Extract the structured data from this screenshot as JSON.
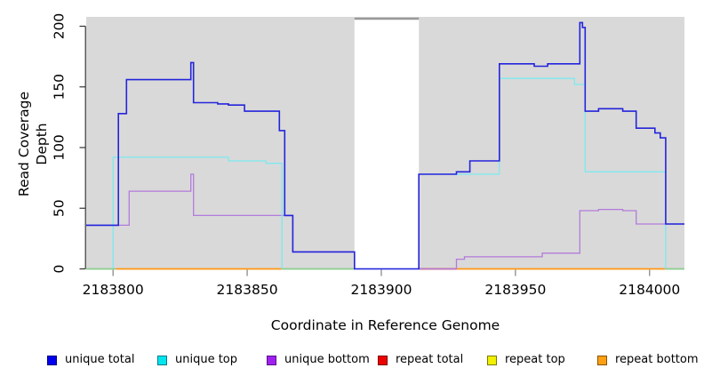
{
  "chart_data": {
    "type": "line",
    "step": true,
    "title": "",
    "xlabel": "Coordinate in Reference Genome",
    "ylabel": "Read Coverage Depth",
    "xlim": [
      2183790,
      2184013
    ],
    "ylim": [
      0,
      208
    ],
    "x_ticks": [
      2183800,
      2183850,
      2183900,
      2183950,
      2184000
    ],
    "y_ticks": [
      0,
      50,
      100,
      150,
      200
    ],
    "panel_background": "#D9D9D9",
    "grid": "off",
    "legend_position": "bottom",
    "masked_region": {
      "from": 2183890,
      "to": 2183914,
      "fill": "#FFFFFF",
      "top_border_color": "#999999"
    },
    "series": [
      {
        "name": "unique total",
        "line_color": "#2424DC",
        "render": "step",
        "step_points": [
          [
            2183790,
            36
          ],
          [
            2183802,
            128
          ],
          [
            2183805,
            156
          ],
          [
            2183829,
            170
          ],
          [
            2183830,
            137
          ],
          [
            2183839,
            136
          ],
          [
            2183843,
            135
          ],
          [
            2183849,
            130
          ],
          [
            2183862,
            114
          ],
          [
            2183864,
            44
          ],
          [
            2183867,
            14
          ],
          [
            2183890,
            0
          ],
          [
            2183914,
            78
          ],
          [
            2183928,
            80
          ],
          [
            2183933,
            89
          ],
          [
            2183944,
            169
          ],
          [
            2183957,
            167
          ],
          [
            2183962,
            169
          ],
          [
            2183974,
            203
          ],
          [
            2183975,
            199
          ],
          [
            2183976,
            130
          ],
          [
            2183981,
            132
          ],
          [
            2183990,
            130
          ],
          [
            2183995,
            116
          ],
          [
            2184002,
            112
          ],
          [
            2184004,
            108
          ],
          [
            2184006,
            37
          ],
          [
            2184013,
            37
          ]
        ]
      },
      {
        "name": "unique top",
        "line_color": "#7DE9F0",
        "render": "step",
        "step_points": [
          [
            2183790,
            0
          ],
          [
            2183800,
            92
          ],
          [
            2183843,
            89
          ],
          [
            2183857,
            87
          ],
          [
            2183863,
            0
          ],
          [
            2183914,
            78
          ],
          [
            2183944,
            157
          ],
          [
            2183972,
            152
          ],
          [
            2183976,
            80
          ],
          [
            2184006,
            0
          ],
          [
            2184013,
            0
          ]
        ]
      },
      {
        "name": "unique bottom",
        "line_color": "#B27BDB",
        "render": "step",
        "step_points": [
          [
            2183790,
            36
          ],
          [
            2183806,
            64
          ],
          [
            2183829,
            78
          ],
          [
            2183830,
            44
          ],
          [
            2183867,
            14
          ],
          [
            2183890,
            0
          ],
          [
            2183928,
            8
          ],
          [
            2183931,
            10
          ],
          [
            2183960,
            13
          ],
          [
            2183974,
            48
          ],
          [
            2183981,
            49
          ],
          [
            2183990,
            48
          ],
          [
            2183995,
            37
          ],
          [
            2184013,
            37
          ]
        ]
      },
      {
        "name": "repeat total",
        "line_color": "#CC4455",
        "render": "baseline",
        "value": 0
      },
      {
        "name": "repeat top",
        "line_color": "#8ECD8E",
        "render": "baseline",
        "value": 0
      },
      {
        "name": "repeat bottom",
        "line_color": "#FF9914",
        "render": "baseline",
        "value": 0
      }
    ],
    "baseline_segments": [
      {
        "series": "repeat total",
        "from": 2183914,
        "to": 2183928,
        "color": "#CC4455"
      },
      {
        "series": "repeat bottom",
        "from": 2183801,
        "to": 2183863,
        "color": "#FF9914"
      },
      {
        "series": "repeat bottom",
        "from": 2183928,
        "to": 2184006,
        "color": "#FF9914"
      },
      {
        "series": "repeat top",
        "from": 2183790,
        "to": 2183801,
        "color": "#8ECD8E"
      },
      {
        "series": "repeat top",
        "from": 2183863,
        "to": 2183890,
        "color": "#8ECD8E"
      },
      {
        "series": "repeat top",
        "from": 2184006,
        "to": 2184013,
        "color": "#8ECD8E"
      }
    ],
    "legend_items": [
      {
        "label": "unique total",
        "swatch_color": "#0000EE",
        "swatch_border": "#000080"
      },
      {
        "label": "unique top",
        "swatch_color": "#00E5EE",
        "swatch_border": "#007A8A"
      },
      {
        "label": "unique bottom",
        "swatch_color": "#A020F0",
        "swatch_border": "#5A0F8A"
      },
      {
        "label": "repeat total",
        "swatch_color": "#EE0000",
        "swatch_border": "#7A0000"
      },
      {
        "label": "repeat top",
        "swatch_color": "#F0F000",
        "swatch_border": "#7A7A00"
      },
      {
        "label": "repeat bottom",
        "swatch_color": "#FFA013",
        "swatch_border": "#8A5200"
      }
    ]
  }
}
